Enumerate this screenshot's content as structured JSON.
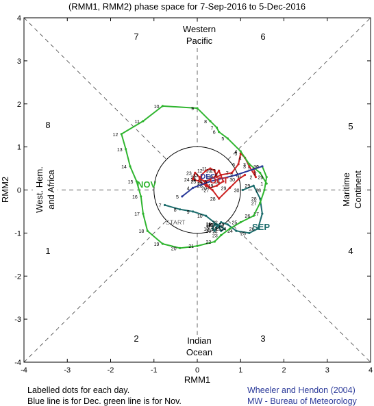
{
  "chart_data": {
    "type": "line",
    "title": "(RMM1, RMM2) phase space for  7-Sep-2016 to 5-Dec-2016",
    "xlabel": "RMM1",
    "ylabel": "RMM2",
    "xlim": [
      -4,
      4
    ],
    "ylim": [
      -4,
      4
    ],
    "xticks": [
      "-4",
      "-3",
      "-2",
      "-1",
      "0",
      "1",
      "2",
      "3",
      "4"
    ],
    "yticks": [
      "-4",
      "-3",
      "-2",
      "-1",
      "0",
      "1",
      "2",
      "3",
      "4"
    ],
    "phase_numbers": [
      "1",
      "2",
      "3",
      "4",
      "5",
      "6",
      "7",
      "8"
    ],
    "region_labels": {
      "top": [
        "Western",
        "Pacific"
      ],
      "bottom": [
        "Indian",
        "Ocean"
      ],
      "right": [
        "Maritime",
        "Continent"
      ],
      "left": [
        "West. Hem.",
        "and Africa"
      ]
    },
    "month_labels": {
      "sep": "SEP",
      "oct": "OCT",
      "nov": "NOV",
      "dec": "DEC"
    },
    "start_label": "START",
    "series": [
      {
        "color": "#1a6b6b",
        "days": [
          7,
          8,
          9,
          10,
          11,
          12,
          13,
          14,
          15,
          16,
          17,
          18,
          19,
          20,
          21,
          22,
          23,
          24,
          25,
          26,
          27,
          28,
          29,
          30
        ],
        "x": [
          -0.75,
          -0.4,
          -0.1,
          0.2,
          0.45,
          0.55,
          0.62,
          0.55,
          0.45,
          0.4,
          0.4,
          0.4,
          0.35,
          0.4,
          0.45,
          0.55,
          0.7,
          0.9,
          1.2,
          1.4,
          1.5,
          1.45,
          1.3,
          1.05
        ],
        "y": [
          -0.35,
          -0.45,
          -0.5,
          -0.6,
          -0.8,
          -0.95,
          -0.9,
          -0.85,
          -0.8,
          -0.78,
          -0.82,
          -0.8,
          -0.9,
          -0.95,
          -0.85,
          -0.75,
          -0.8,
          -0.95,
          -1.0,
          -0.9,
          -0.55,
          -0.2,
          0.1,
          0.0
        ]
      },
      {
        "color": "#cc2222",
        "days": [
          1,
          2,
          3,
          4,
          5,
          6,
          7,
          8,
          9,
          10,
          11,
          12,
          13,
          14,
          15,
          16,
          17,
          18,
          19,
          20,
          21,
          22,
          23,
          24,
          25,
          26,
          27,
          28,
          29,
          30,
          31
        ],
        "x": [
          1.3,
          1.35,
          1.2,
          1.1,
          1.0,
          0.95,
          0.8,
          0.55,
          0.45,
          0.4,
          0.3,
          0.2,
          0.1,
          0.05,
          0.2,
          0.4,
          0.5,
          0.6,
          0.45,
          0.3,
          0.2,
          0.05,
          -0.05,
          -0.1,
          0.05,
          0.2,
          0.35,
          0.5,
          0.75,
          0.95,
          1.1
        ],
        "y": [
          0.5,
          0.3,
          0.55,
          0.75,
          0.85,
          0.6,
          0.4,
          0.35,
          0.3,
          0.45,
          0.5,
          0.45,
          0.35,
          0.25,
          0.2,
          0.3,
          0.45,
          0.2,
          0.1,
          0.05,
          0.15,
          0.3,
          0.4,
          0.25,
          0.2,
          0.1,
          0.0,
          -0.2,
          0.05,
          0.25,
          0.35
        ]
      },
      {
        "color": "#2fb52f",
        "days": [
          1,
          2,
          3,
          4,
          5,
          6,
          7,
          8,
          9,
          10,
          11,
          12,
          13,
          14,
          15,
          16,
          17,
          18,
          19,
          20,
          21,
          22,
          23,
          24,
          25,
          26,
          27,
          28,
          29,
          30
        ],
        "x": [
          1.6,
          1.45,
          1.2,
          1.0,
          0.7,
          0.5,
          0.45,
          0.3,
          0.0,
          -0.8,
          -1.25,
          -1.75,
          -1.65,
          -1.55,
          -1.4,
          -1.3,
          -1.25,
          -1.15,
          -0.8,
          -0.4,
          0.0,
          0.4,
          0.55,
          0.75,
          1.0,
          1.3,
          1.45,
          1.55,
          1.6,
          1.5
        ],
        "y": [
          0.15,
          0.4,
          0.6,
          0.9,
          1.2,
          1.35,
          1.45,
          1.6,
          1.9,
          1.95,
          1.6,
          1.3,
          0.95,
          0.55,
          0.2,
          -0.15,
          -0.55,
          -0.95,
          -1.25,
          -1.35,
          -1.3,
          -1.2,
          -1.05,
          -0.9,
          -0.75,
          -0.6,
          -0.3,
          0.0,
          0.3,
          0.55
        ]
      },
      {
        "color": "#2a3a9a",
        "days": [
          1,
          2,
          3,
          4,
          5
        ],
        "x": [
          1.5,
          0.9,
          0.3,
          -0.1,
          -0.35
        ],
        "y": [
          0.55,
          0.35,
          0.2,
          0.05,
          -0.15
        ]
      }
    ]
  },
  "footer": {
    "left_line1": "Labelled dots for each day.",
    "left_line2": "Blue line is for Dec. green line is for Nov.",
    "right_line1": "Wheeler and Hendon (2004)",
    "right_line2": "MW - Bureau of Meteorology"
  }
}
